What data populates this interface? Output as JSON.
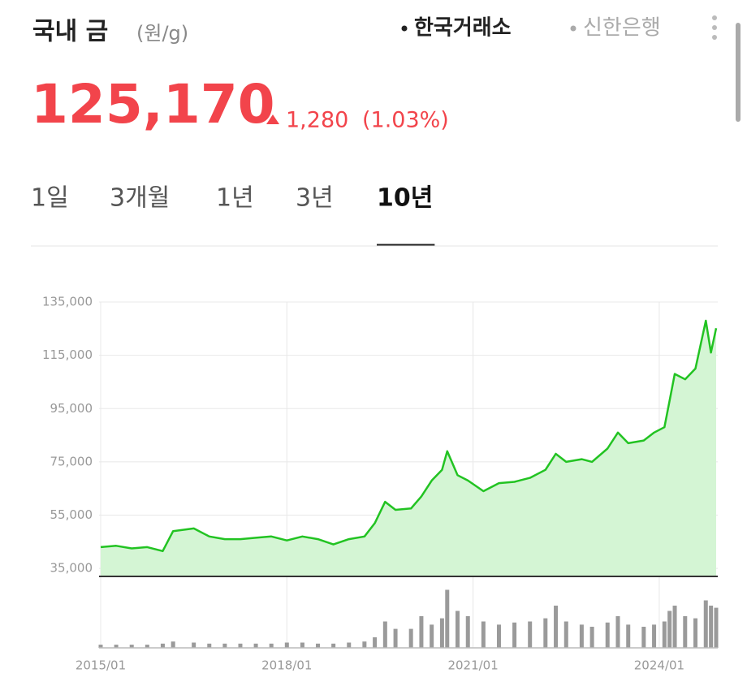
{
  "header": {
    "title": "국내 금",
    "unit": "(원/g)",
    "sources": [
      "한국거래소",
      "신한은행"
    ]
  },
  "price": {
    "value": "125,170",
    "change": "1,280",
    "change_pct": "(1.03%)"
  },
  "tabs": [
    "1일",
    "3개월",
    "1년",
    "3년",
    "10년"
  ],
  "selected_tab": 4,
  "chart_data": [
    {
      "type": "line",
      "color": "#22c322",
      "fill": "#d4f5d4",
      "x": [
        "2015/01",
        "2015/04",
        "2015/07",
        "2015/10",
        "2016/01",
        "2016/03",
        "2016/07",
        "2016/10",
        "2017/01",
        "2017/04",
        "2017/07",
        "2017/10",
        "2018/01",
        "2018/04",
        "2018/07",
        "2018/10",
        "2019/01",
        "2019/04",
        "2019/06",
        "2019/08",
        "2019/10",
        "2020/01",
        "2020/03",
        "2020/05",
        "2020/07",
        "2020/08",
        "2020/10",
        "2020/12",
        "2021/03",
        "2021/06",
        "2021/09",
        "2021/12",
        "2022/03",
        "2022/05",
        "2022/07",
        "2022/10",
        "2022/12",
        "2023/03",
        "2023/05",
        "2023/07",
        "2023/10",
        "2023/12",
        "2024/02",
        "2024/03",
        "2024/04",
        "2024/06",
        "2024/08",
        "2024/10",
        "2024/11",
        "2024/12"
      ],
      "values": [
        43000,
        43500,
        42500,
        43000,
        41500,
        49000,
        50000,
        47000,
        46000,
        46000,
        46500,
        47000,
        45500,
        47000,
        46000,
        44000,
        46000,
        47000,
        52000,
        60000,
        57000,
        57500,
        62000,
        68000,
        72000,
        79000,
        70000,
        68000,
        64000,
        67000,
        67500,
        69000,
        72000,
        78000,
        75000,
        76000,
        75000,
        80000,
        86000,
        82000,
        83000,
        86000,
        88000,
        98000,
        108000,
        106000,
        110000,
        128000,
        116000,
        125170
      ],
      "xlim": [
        "2015/01",
        "2024/12"
      ],
      "xticks": [
        "2015/01",
        "2018/01",
        "2021/01",
        "2024/01"
      ],
      "ylim": [
        32000,
        135000
      ],
      "yticks": [
        {
          "value": 35000,
          "label": "35,000"
        },
        {
          "value": 55000,
          "label": "55,000"
        },
        {
          "value": 75000,
          "label": "75,000"
        },
        {
          "value": 95000,
          "label": "95,000"
        },
        {
          "value": 115000,
          "label": "115,000"
        },
        {
          "value": 135000,
          "label": "135,000"
        }
      ],
      "grid": true
    },
    {
      "type": "bar",
      "color": "#9a9a9a",
      "values": [
        3,
        3,
        3,
        3,
        4,
        6,
        5,
        4,
        4,
        4,
        4,
        4,
        5,
        5,
        4,
        4,
        5,
        6,
        10,
        25,
        18,
        18,
        30,
        22,
        28,
        55,
        35,
        30,
        25,
        22,
        24,
        25,
        28,
        40,
        25,
        22,
        20,
        24,
        30,
        22,
        20,
        22,
        25,
        35,
        40,
        30,
        28,
        45,
        40,
        38
      ],
      "ylim": [
        0,
        60
      ]
    }
  ]
}
